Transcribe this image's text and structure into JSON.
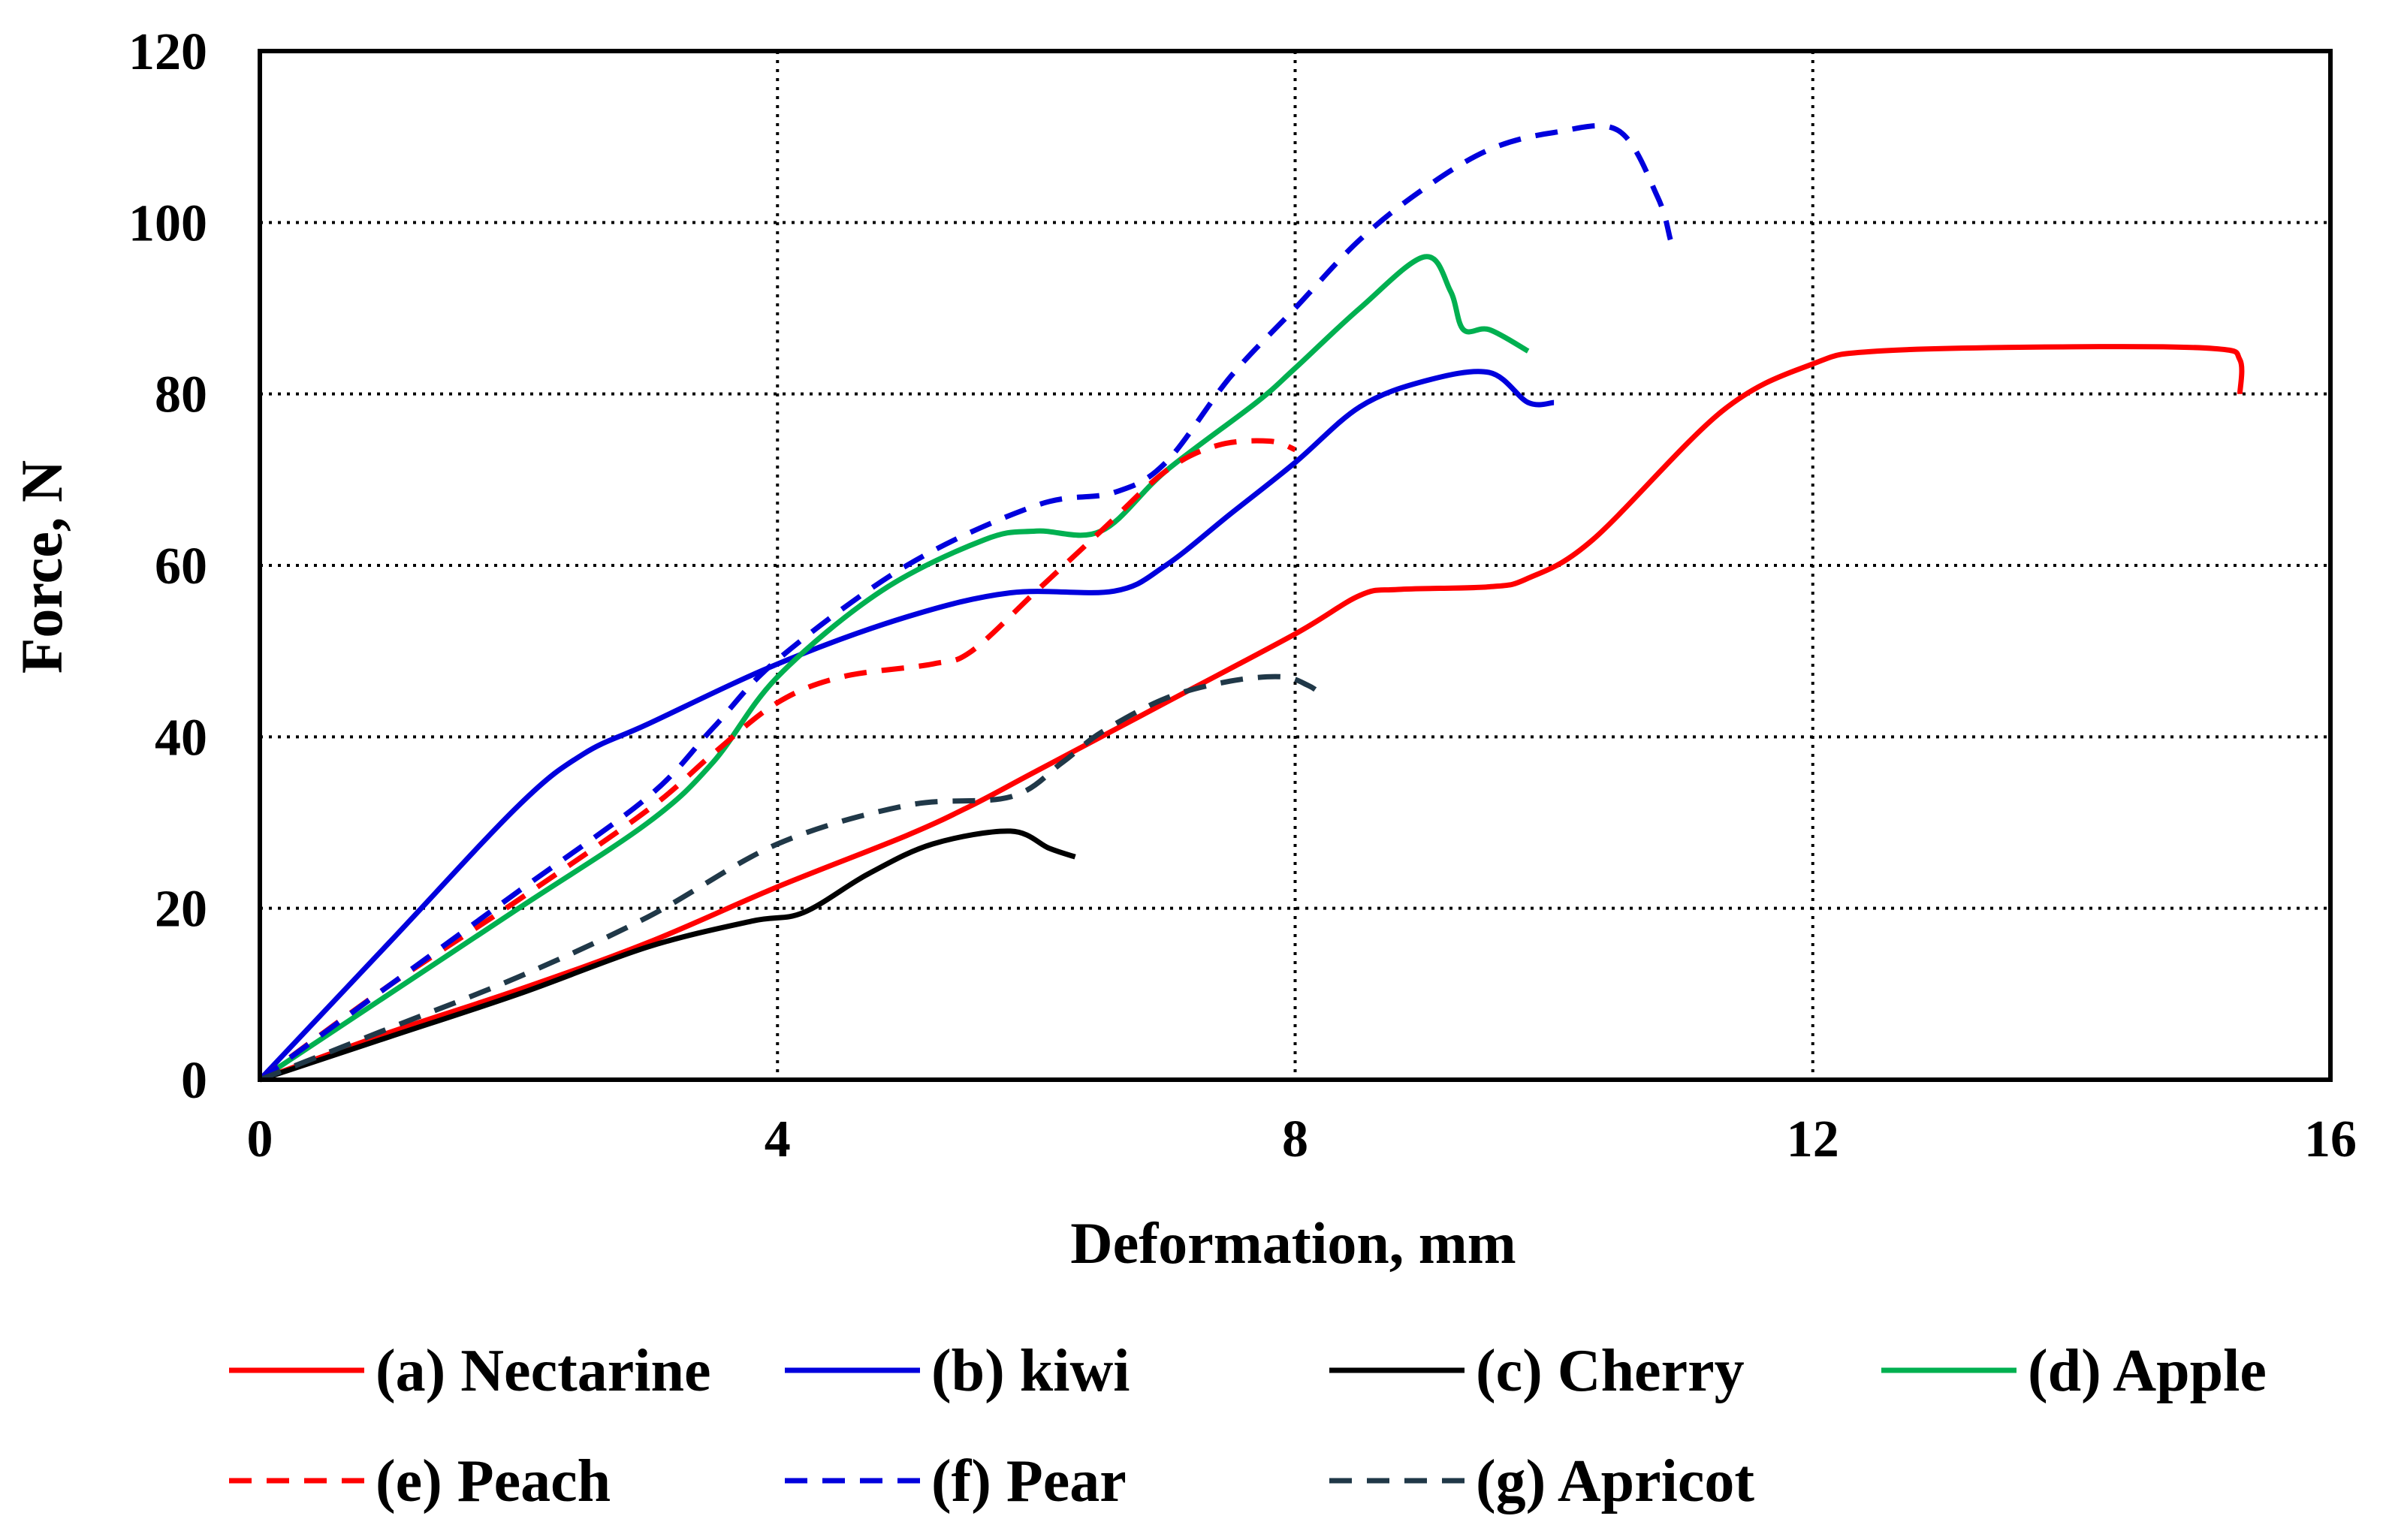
{
  "chart_data": {
    "type": "line",
    "title": "",
    "xlabel": "Deformation, mm",
    "ylabel": "Force, N",
    "xlim": [
      0,
      16
    ],
    "ylim": [
      0,
      120
    ],
    "xticks": [
      0,
      4,
      8,
      12,
      16
    ],
    "yticks": [
      0,
      20,
      40,
      60,
      80,
      100,
      120
    ],
    "grid": "dotted",
    "legend_position": "bottom",
    "series": [
      {
        "name": "(a) Nectarine",
        "color": "#ff0000",
        "dash": "solid",
        "points": [
          [
            0,
            0
          ],
          [
            1,
            5.5
          ],
          [
            2,
            10.5
          ],
          [
            3,
            16
          ],
          [
            4,
            22.5
          ],
          [
            5,
            28.5
          ],
          [
            5.5,
            32
          ],
          [
            6,
            36
          ],
          [
            7,
            44
          ],
          [
            8,
            52
          ],
          [
            8.5,
            56.5
          ],
          [
            8.8,
            57.2
          ],
          [
            9.5,
            57.5
          ],
          [
            9.8,
            58.5
          ],
          [
            10.3,
            63
          ],
          [
            11.3,
            78
          ],
          [
            12,
            83.5
          ],
          [
            12.5,
            85
          ],
          [
            14,
            85.5
          ],
          [
            15.1,
            85.3
          ],
          [
            15.3,
            84
          ],
          [
            15.3,
            80
          ]
        ]
      },
      {
        "name": "(b) kiwi",
        "color": "#0000dd",
        "dash": "solid",
        "points": [
          [
            0,
            0
          ],
          [
            1,
            16
          ],
          [
            2,
            32
          ],
          [
            2.5,
            38
          ],
          [
            3,
            41.5
          ],
          [
            4,
            48.5
          ],
          [
            5,
            54
          ],
          [
            5.8,
            56.8
          ],
          [
            6.6,
            57
          ],
          [
            7,
            60
          ],
          [
            7.5,
            66
          ],
          [
            8,
            72
          ],
          [
            8.5,
            78.5
          ],
          [
            9,
            81.5
          ],
          [
            9.5,
            82.5
          ],
          [
            9.8,
            79
          ],
          [
            10,
            79
          ]
        ]
      },
      {
        "name": "(c) Cherry",
        "color": "#000000",
        "dash": "solid",
        "points": [
          [
            0,
            0
          ],
          [
            1,
            5
          ],
          [
            2,
            10
          ],
          [
            3,
            15.5
          ],
          [
            3.8,
            18.5
          ],
          [
            4.2,
            19.5
          ],
          [
            4.7,
            24
          ],
          [
            5.2,
            27.5
          ],
          [
            5.8,
            29
          ],
          [
            6.1,
            27
          ],
          [
            6.3,
            26
          ]
        ]
      },
      {
        "name": "(d) Apple",
        "color": "#00b050",
        "dash": "solid",
        "points": [
          [
            0,
            0
          ],
          [
            1,
            10
          ],
          [
            2,
            20
          ],
          [
            3,
            30
          ],
          [
            3.5,
            37
          ],
          [
            4,
            47
          ],
          [
            4.8,
            57
          ],
          [
            5.6,
            63
          ],
          [
            6,
            64
          ],
          [
            6.5,
            64
          ],
          [
            7,
            71
          ],
          [
            7.7,
            79
          ],
          [
            8,
            83
          ],
          [
            8.5,
            90
          ],
          [
            9,
            96
          ],
          [
            9.2,
            92
          ],
          [
            9.3,
            87.5
          ],
          [
            9.5,
            87.5
          ],
          [
            9.8,
            85
          ]
        ]
      },
      {
        "name": "(e) Peach",
        "color": "#ff0000",
        "dash": "dashed",
        "points": [
          [
            0,
            0
          ],
          [
            1,
            11
          ],
          [
            2,
            21
          ],
          [
            3,
            31.5
          ],
          [
            3.5,
            38
          ],
          [
            4,
            44
          ],
          [
            4.5,
            47
          ],
          [
            5.2,
            48.5
          ],
          [
            5.5,
            50
          ],
          [
            6,
            57
          ],
          [
            6.5,
            64
          ],
          [
            7,
            71
          ],
          [
            7.4,
            74
          ],
          [
            7.8,
            74.5
          ],
          [
            8,
            73.5
          ]
        ]
      },
      {
        "name": "(f) Pear",
        "color": "#0000dd",
        "dash": "dashed",
        "points": [
          [
            0,
            0
          ],
          [
            1,
            11
          ],
          [
            2,
            22
          ],
          [
            3,
            33
          ],
          [
            3.5,
            41
          ],
          [
            4,
            49
          ],
          [
            5,
            60
          ],
          [
            6,
            67
          ],
          [
            6.6,
            68.5
          ],
          [
            7,
            72
          ],
          [
            7.5,
            82
          ],
          [
            8,
            90
          ],
          [
            8.5,
            98
          ],
          [
            9,
            104
          ],
          [
            9.5,
            108.5
          ],
          [
            10,
            110.5
          ],
          [
            10.5,
            110.7
          ],
          [
            10.8,
            103
          ],
          [
            10.9,
            98
          ]
        ]
      },
      {
        "name": "(g) Apricot",
        "color": "#203848",
        "dash": "dashed",
        "points": [
          [
            0,
            0
          ],
          [
            1,
            6
          ],
          [
            2,
            12
          ],
          [
            3,
            19
          ],
          [
            4,
            27.5
          ],
          [
            5,
            32
          ],
          [
            5.8,
            33
          ],
          [
            6.2,
            37
          ],
          [
            6.5,
            40.5
          ],
          [
            7,
            44.5
          ],
          [
            7.5,
            46.5
          ],
          [
            7.9,
            47
          ],
          [
            8.1,
            46
          ],
          [
            8.2,
            45
          ]
        ]
      }
    ]
  }
}
